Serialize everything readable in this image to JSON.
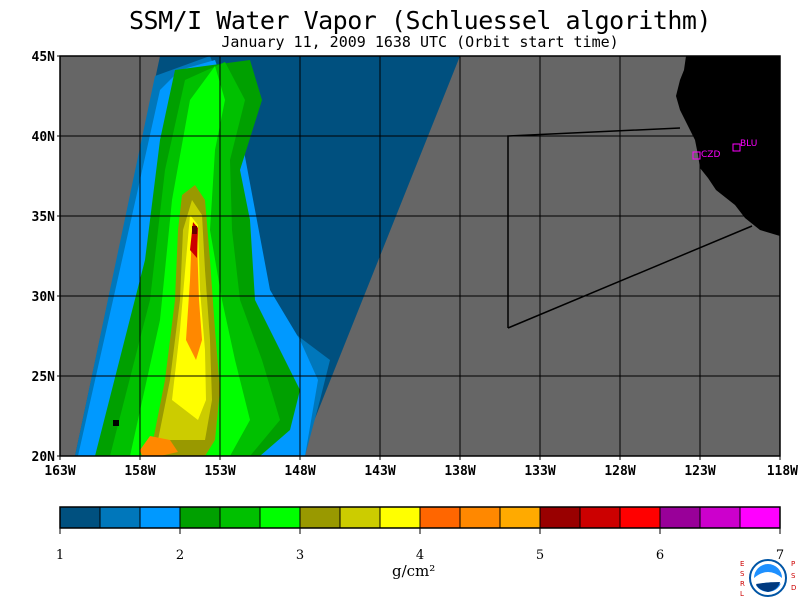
{
  "header": {
    "title": "SSM/I Water Vapor (Schluessel algorithm)",
    "subtitle": "January 11, 2009  1638 UTC  (Orbit start time)"
  },
  "map": {
    "lat_labels": [
      "45N",
      "40N",
      "35N",
      "30N",
      "25N",
      "20N"
    ],
    "lon_labels": [
      "163W",
      "158W",
      "153W",
      "148W",
      "143W",
      "138W",
      "133W",
      "128W",
      "123W",
      "118W"
    ],
    "sites": [
      {
        "label": "CZD"
      },
      {
        "label": "BLU"
      }
    ],
    "colors": {
      "ocean_no_data": "#666666",
      "land": "#000000",
      "grid": "#000000",
      "site_marker": "#ff00ff"
    }
  },
  "colorbar": {
    "ticks": [
      "1",
      "2",
      "3",
      "4",
      "5",
      "6",
      "7"
    ],
    "unit": "g/cm²",
    "colors": [
      "#00507f",
      "#0077bb",
      "#0099ff",
      "#00a000",
      "#00c000",
      "#00ff00",
      "#999900",
      "#cccc00",
      "#ffff00",
      "#ff6600",
      "#ff8800",
      "#ffaa00",
      "#990000",
      "#cc0000",
      "#ff0000",
      "#990099",
      "#cc00cc",
      "#ff00ff"
    ]
  },
  "logo": {
    "left_letters": "ESRL",
    "right_letters": "PSD",
    "center_text": "NOAA"
  }
}
